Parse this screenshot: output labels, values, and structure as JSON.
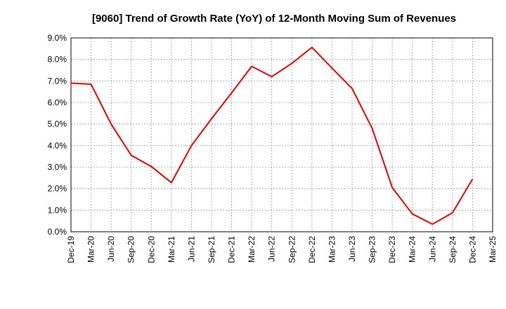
{
  "chart_data": {
    "type": "line",
    "title": "[9060]  Trend of Growth Rate (YoY) of 12-Month Moving Sum of Revenues",
    "xlabel": "",
    "ylabel": "",
    "ylim": [
      0,
      9
    ],
    "y_ticks": [
      "0.0%",
      "1.0%",
      "2.0%",
      "3.0%",
      "4.0%",
      "5.0%",
      "6.0%",
      "7.0%",
      "8.0%",
      "9.0%"
    ],
    "x_ticks": [
      "Dec-19",
      "Mar-20",
      "Jun-20",
      "Sep-20",
      "Dec-20",
      "Mar-21",
      "Jun-21",
      "Sep-21",
      "Dec-21",
      "Mar-22",
      "Jun-22",
      "Sep-22",
      "Dec-22",
      "Mar-23",
      "Jun-23",
      "Sep-23",
      "Dec-23",
      "Mar-24",
      "Jun-24",
      "Sep-24",
      "Dec-24",
      "Mar-25"
    ],
    "grid": true,
    "series": [
      {
        "color": "#e60000",
        "x": [
          "Dec-19",
          "Mar-20",
          "Jun-20",
          "Sep-20",
          "Dec-20",
          "Mar-21",
          "Jun-21",
          "Sep-21",
          "Dec-21",
          "Mar-22",
          "Jun-22",
          "Sep-22",
          "Dec-22",
          "Mar-23",
          "Jun-23",
          "Sep-23",
          "Dec-23",
          "Mar-24",
          "Jun-24",
          "Sep-24",
          "Dec-24"
        ],
        "values": [
          6.9,
          6.85,
          5.0,
          3.55,
          3.03,
          2.28,
          4.0,
          5.25,
          6.45,
          7.68,
          7.2,
          7.82,
          8.56,
          7.6,
          6.65,
          4.8,
          2.05,
          0.83,
          0.35,
          0.88,
          2.45
        ]
      }
    ]
  }
}
